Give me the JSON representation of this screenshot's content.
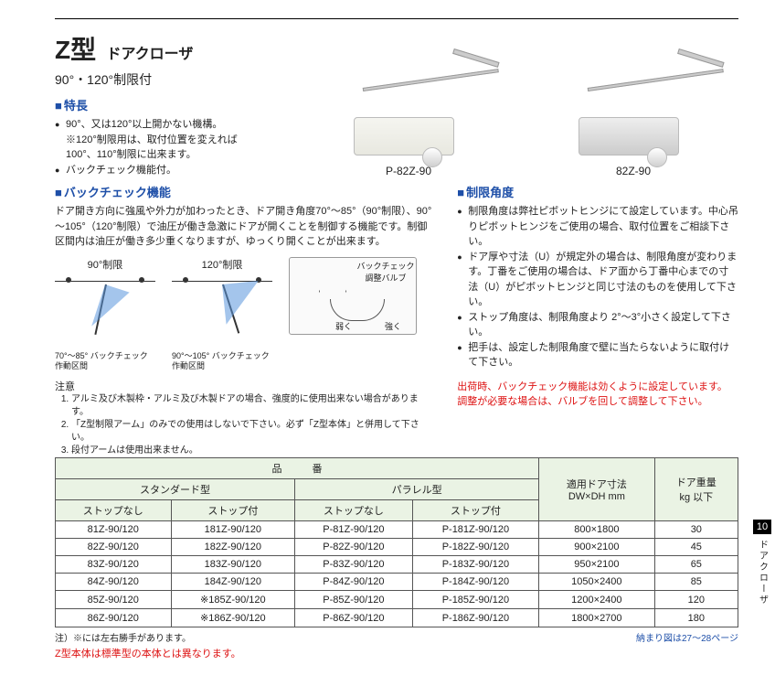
{
  "title": {
    "main": "Z型",
    "sub": "ドアクローザ",
    "subtitle": "90°・120°制限付"
  },
  "features": {
    "heading": "特長",
    "items": [
      "90°、又は120°以上開かない機構。",
      "バックチェック機能付。"
    ],
    "note": "※120°制限用は、取付位置を変えれば\n100°、110°制限に出来ます。"
  },
  "products": [
    {
      "caption": "P-82Z-90",
      "variant": "cream"
    },
    {
      "caption": "82Z-90",
      "variant": "silver"
    }
  ],
  "backcheck": {
    "heading": "バックチェック機能",
    "body": "ドア開き方向に強風や外力が加わったとき、ドア開き角度70°～85°（90°制限）、90°～105°（120°制限）で油圧が働き急激にドアが開くことを制御する機能です。制御区間内は油圧が働き多少重くなりますが、ゆっくり開くことが出来ます。",
    "dia90": {
      "title": "90°制限",
      "range": "70°～85°",
      "note": "バックチェック\n作動区間"
    },
    "dia120": {
      "title": "120°制限",
      "range": "90°～105°",
      "note": "バックチェック\n作動区間"
    },
    "valve": {
      "label": "バックチェック調整バルブ",
      "weak": "弱く",
      "strong": "強く"
    },
    "notes_head": "注意",
    "notes": [
      "アルミ及び木製枠・アルミ及び木製ドアの場合、強度的に使用出来ない場合があります。",
      "「Z型制限アーム」のみでの使用はしないで下さい。必ず「Z型本体」と併用して下さい。",
      "段付アームは使用出来ません。"
    ]
  },
  "limit": {
    "heading": "制限角度",
    "items": [
      "制限角度は弊社ピボットヒンジにて設定しています。中心吊りピボットヒンジをご使用の場合、取付位置をご相談下さい。",
      "ドア厚や寸法（U）が規定外の場合は、制限角度が変わります。丁番をご使用の場合は、ドア面から丁番中心までの寸法（U）がピボットヒンジと同じ寸法のものを使用して下さい。",
      "ストップ角度は、制限角度より 2°～3°小さく設定して下さい。",
      "把手は、設定した制限角度で壁に当たらないように取付けて下さい。"
    ]
  },
  "red_note": "出荷時、バックチェック機能は効くように設定しています。\n調整が必要な場合は、バルブを回して調整して下さい。",
  "table": {
    "h_product": "品　　　番",
    "h_std": "スタンダード型",
    "h_par": "パラレル型",
    "h_size": "適用ドア寸法\nDW×DH mm",
    "h_weight": "ドア重量\nkg 以下",
    "h_nostop": "ストップなし",
    "h_stop": "ストップ付",
    "rows": [
      {
        "a": "81Z-90/120",
        "b": "181Z-90/120",
        "c": "P-81Z-90/120",
        "d": "P-181Z-90/120",
        "e": "800×1800",
        "f": "30"
      },
      {
        "a": "82Z-90/120",
        "b": "182Z-90/120",
        "c": "P-82Z-90/120",
        "d": "P-182Z-90/120",
        "e": "900×2100",
        "f": "45"
      },
      {
        "a": "83Z-90/120",
        "b": "183Z-90/120",
        "c": "P-83Z-90/120",
        "d": "P-183Z-90/120",
        "e": "950×2100",
        "f": "65"
      },
      {
        "a": "84Z-90/120",
        "b": "184Z-90/120",
        "c": "P-84Z-90/120",
        "d": "P-184Z-90/120",
        "e": "1050×2400",
        "f": "85"
      },
      {
        "a": "85Z-90/120",
        "b": "※185Z-90/120",
        "c": "P-85Z-90/120",
        "d": "P-185Z-90/120",
        "e": "1200×2400",
        "f": "120"
      },
      {
        "a": "86Z-90/120",
        "b": "※186Z-90/120",
        "c": "P-86Z-90/120",
        "d": "P-186Z-90/120",
        "e": "1800×2700",
        "f": "180"
      }
    ]
  },
  "footer": {
    "left": "注）※には左右勝手があります。",
    "right": "納まり図は27～28ページ",
    "red": "Z型本体は標準型の本体とは異なります。"
  },
  "pagetab": {
    "num": "10",
    "label": "ドアクローザ"
  }
}
